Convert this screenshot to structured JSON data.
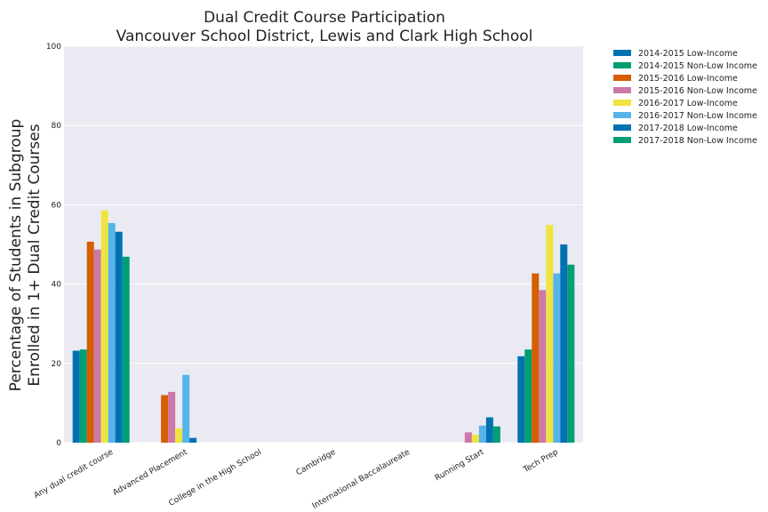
{
  "chart_data": {
    "type": "bar",
    "title": "Dual Credit Course Participation",
    "subtitle": "Vancouver School District, Lewis and Clark High School",
    "xlabel": "",
    "ylabel": "Percentage of Students in Subgroup",
    "ylabel_line2": "Enrolled in 1+ Dual Credit Courses",
    "ylim": [
      0,
      100
    ],
    "yticks": [
      0,
      20,
      40,
      60,
      80,
      100
    ],
    "grid": true,
    "legend_position": "outside-top-right",
    "categories": [
      "Any dual credit course",
      "Advanced Placement",
      "College in the High School",
      "Cambridge",
      "International Baccalaureate",
      "Running Start",
      "Tech Prep"
    ],
    "series": [
      {
        "name": "2014-2015 Low-Income",
        "color": "#0072b2",
        "values": [
          23.2,
          0,
          0,
          0,
          0,
          0,
          21.8
        ]
      },
      {
        "name": "2014-2015 Non-Low Income",
        "color": "#009e73",
        "values": [
          23.5,
          0,
          0,
          0,
          0,
          0,
          23.5
        ]
      },
      {
        "name": "2015-2016 Low-Income",
        "color": "#d55e00",
        "values": [
          50.7,
          12,
          0,
          0,
          0,
          0,
          42.7
        ]
      },
      {
        "name": "2015-2016 Non-Low Income",
        "color": "#cc79a7",
        "values": [
          48.7,
          12.8,
          0,
          0,
          0,
          2.6,
          38.5
        ]
      },
      {
        "name": "2016-2017 Low-Income",
        "color": "#f0e442",
        "values": [
          58.6,
          3.6,
          0,
          0,
          0,
          2,
          54.9
        ]
      },
      {
        "name": "2016-2017 Non-Low Income",
        "color": "#56b4e9",
        "values": [
          55.4,
          17.1,
          0,
          0,
          0,
          4.3,
          42.7
        ]
      },
      {
        "name": "2017-2018 Low-Income",
        "color": "#0072b2",
        "values": [
          53.2,
          1.2,
          0,
          0,
          0,
          6.4,
          50
        ]
      },
      {
        "name": "2017-2018 Non-Low Income",
        "color": "#009e73",
        "values": [
          46.9,
          0,
          0,
          0,
          0,
          4.1,
          44.9
        ]
      }
    ]
  },
  "colors": {
    "plot_background": "#eaeaf2",
    "grid": "#ffffff"
  }
}
